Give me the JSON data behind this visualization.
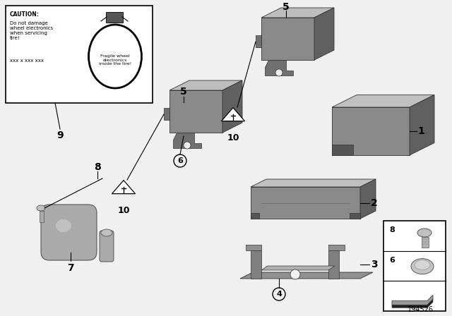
{
  "bg_color": "#f0f0f0",
  "part_color": "#8a8a8a",
  "part_color_light": "#b0b0b0",
  "part_color_dark": "#606060",
  "part_color_top": "#c0c0c0",
  "diagram_number": "194526",
  "caution_text_left": "CAUTION:\nDo not damage\nwheel electronics\nwhen servicing\ntire!\n\nxxx x xxx xxx",
  "caution_text_right": "Fragile wheel\nelectronics\ninside the tire!"
}
